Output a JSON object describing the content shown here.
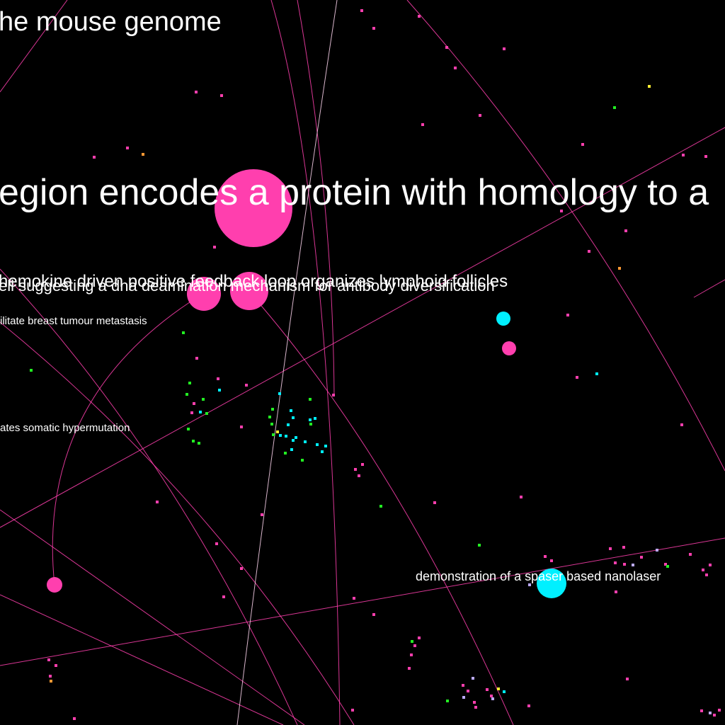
{
  "colors": {
    "background": "#000000",
    "edge_pink": "#ff3fae",
    "edge_light": "#ffd6f0",
    "node_pink": "#ff3fae",
    "node_cyan": "#00f0ff",
    "node_green": "#22ee22",
    "node_yellow": "#ffee33",
    "node_orange": "#ff9933",
    "node_lavender": "#bbaaff",
    "label_text": "#ffffff"
  },
  "labels": {
    "mouse_genome": "he mouse genome",
    "protein_homology": "egion encodes a protein with homology to a",
    "chemokine": "hemokine driven positive feedback loop organizes lymphoid follicles",
    "dna_deamination": "ell suggesting a dna deamination mechanism for antibody diversification",
    "breast_tumour": "ilitate breast tumour metastasis",
    "somatic_hypermutation": "ates somatic hypermutation",
    "spaser_nanolaser": "demonstration of a spaser based nanolaser"
  }
}
